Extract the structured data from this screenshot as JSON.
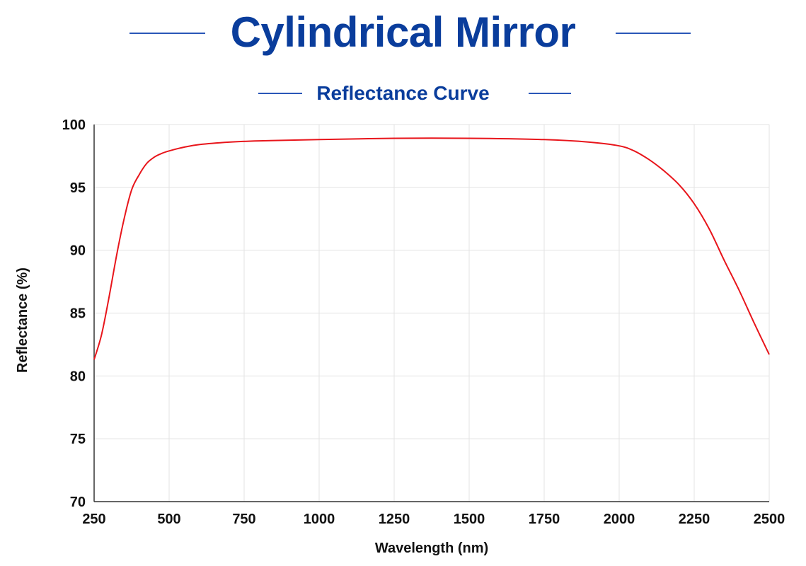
{
  "header": {
    "title": "Cylindrical Mirror",
    "subtitle": "Reflectance Curve"
  },
  "colors": {
    "title": "#0a3d9c",
    "rule": "#2a57b8",
    "curve": "#e8151b",
    "grid": "#e3e3e3",
    "axis": "#333333"
  },
  "chart_data": {
    "type": "line",
    "title": "Reflectance Curve",
    "xlabel": "Wavelength  (nm)",
    "ylabel": "Reflectance  (%)",
    "xlim": [
      250,
      2500
    ],
    "ylim": [
      70,
      100
    ],
    "xticks": [
      250,
      500,
      750,
      1000,
      1250,
      1500,
      1750,
      2000,
      2250,
      2500
    ],
    "yticks": [
      70,
      75,
      80,
      85,
      90,
      95,
      100
    ],
    "grid": true,
    "series": [
      {
        "x": [
          250,
          275,
          300,
          325,
          350,
          375,
          400,
          425,
          450,
          475,
          500,
          550,
          600,
          700,
          800,
          1000,
          1250,
          1500,
          1750,
          1900,
          2000,
          2050,
          2100,
          2150,
          2200,
          2250,
          2300,
          2350,
          2400,
          2450,
          2500
        ],
        "values": [
          81.3,
          83.3,
          86.3,
          89.6,
          92.5,
          94.8,
          96.0,
          96.9,
          97.4,
          97.7,
          97.9,
          98.2,
          98.4,
          98.6,
          98.7,
          98.8,
          98.9,
          98.9,
          98.8,
          98.6,
          98.3,
          97.9,
          97.2,
          96.3,
          95.2,
          93.7,
          91.7,
          89.2,
          86.8,
          84.2,
          81.7
        ]
      }
    ]
  }
}
